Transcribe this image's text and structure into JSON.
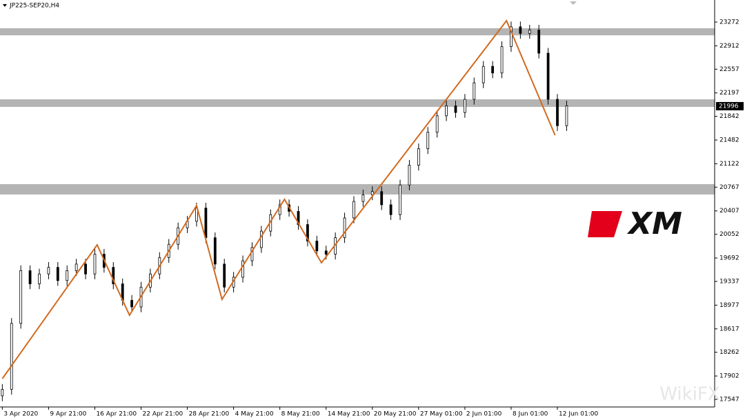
{
  "chart_data": {
    "type": "candlestick",
    "title": "JP225-SEP20,H4",
    "brand": "XM",
    "watermark": "WikiFX",
    "xlim": [
      -1,
      308
    ],
    "ylim": [
      17432,
      23607
    ],
    "yticks": [
      23272,
      22912,
      22557,
      22197,
      21842,
      21482,
      21122,
      20767,
      20407,
      20052,
      19692,
      19337,
      18977,
      18617,
      18262,
      17902,
      17547
    ],
    "xticks": [
      {
        "value": 0,
        "label": "3 Apr 2020"
      },
      {
        "value": 20,
        "label": "9 Apr 21:00"
      },
      {
        "value": 40,
        "label": "16 Apr 21:00"
      },
      {
        "value": 60,
        "label": "22 Apr 21:00"
      },
      {
        "value": 80,
        "label": "28 Apr 21:00"
      },
      {
        "value": 100,
        "label": "4 May 21:00"
      },
      {
        "value": 120,
        "label": "8 May 21:00"
      },
      {
        "value": 140,
        "label": "14 May 21:00"
      },
      {
        "value": 160,
        "label": "20 May 21:00"
      },
      {
        "value": 180,
        "label": "27 May 01:00"
      },
      {
        "value": 200,
        "label": "2 Jun 01:00"
      },
      {
        "value": 220,
        "label": "8 Jun 01:00"
      },
      {
        "value": 240,
        "label": "12 Jun 01:00"
      }
    ],
    "last_price": 21996,
    "zones": [
      [
        23071,
        23178
      ],
      [
        21985,
        22100
      ],
      [
        20656,
        20813
      ]
    ],
    "zone_color": "#b4b4b4",
    "candle_color": "#000000",
    "x": [
      0,
      4,
      8,
      12,
      16,
      20,
      24,
      28,
      32,
      36,
      40,
      44,
      48,
      52,
      56,
      60,
      64,
      68,
      72,
      76,
      80,
      84,
      88,
      92,
      96,
      100,
      104,
      108,
      112,
      116,
      120,
      124,
      128,
      132,
      136,
      140,
      144,
      148,
      152,
      156,
      160,
      164,
      168,
      172,
      176,
      180,
      184,
      188,
      192,
      196,
      200,
      204,
      208,
      212,
      216,
      220,
      224,
      228,
      232,
      236,
      240,
      244
    ],
    "open": [
      17600,
      17700,
      18700,
      19500,
      19300,
      19450,
      19550,
      19350,
      19500,
      19600,
      19450,
      19750,
      19550,
      19300,
      19050,
      18950,
      19250,
      19450,
      19700,
      19900,
      20150,
      20250,
      20450,
      20000,
      19600,
      19250,
      19400,
      19650,
      19850,
      20100,
      20350,
      20500,
      20400,
      20200,
      19950,
      19800,
      19750,
      20000,
      20300,
      20550,
      20650,
      20700,
      20500,
      20350,
      20800,
      21100,
      21350,
      21600,
      21850,
      22000,
      21900,
      22100,
      22350,
      22600,
      22500,
      22900,
      23200,
      23100,
      23150,
      22800,
      22100,
      21700
    ],
    "high": [
      17780,
      18780,
      19580,
      19580,
      19530,
      19630,
      19630,
      19580,
      19680,
      19680,
      19830,
      19830,
      19630,
      19380,
      19130,
      19330,
      19530,
      19780,
      19980,
      20230,
      20330,
      20530,
      20530,
      20080,
      19680,
      19480,
      19730,
      19930,
      20180,
      20430,
      20580,
      20580,
      20480,
      20280,
      20030,
      19880,
      20080,
      20380,
      20630,
      20730,
      20780,
      20780,
      20580,
      20880,
      21180,
      21430,
      21680,
      21930,
      22080,
      22080,
      22180,
      22430,
      22680,
      22680,
      22980,
      23280,
      23280,
      23230,
      23230,
      22880,
      22180,
      22080
    ],
    "low": [
      17520,
      17620,
      18620,
      19220,
      19220,
      19370,
      19270,
      19270,
      19420,
      19370,
      19370,
      19470,
      19220,
      18970,
      18870,
      18870,
      19170,
      19370,
      19620,
      19820,
      20070,
      20170,
      19920,
      19520,
      19170,
      19170,
      19320,
      19570,
      19770,
      20020,
      20270,
      20320,
      20120,
      19870,
      19720,
      19670,
      19670,
      19920,
      20220,
      20470,
      20570,
      20420,
      20270,
      20270,
      20720,
      21020,
      21270,
      21520,
      21770,
      21820,
      21820,
      22020,
      22270,
      22420,
      22420,
      22820,
      23020,
      23020,
      22720,
      22020,
      21620,
      21620
    ],
    "close": [
      17700,
      18700,
      19500,
      19300,
      19450,
      19550,
      19350,
      19500,
      19600,
      19450,
      19750,
      19550,
      19300,
      19050,
      18950,
      19250,
      19450,
      19700,
      19900,
      20150,
      20250,
      20450,
      20000,
      19600,
      19250,
      19400,
      19650,
      19850,
      20100,
      20350,
      20500,
      20400,
      20200,
      19950,
      19800,
      19750,
      20000,
      20300,
      20550,
      20650,
      20700,
      20500,
      20350,
      20800,
      21100,
      21350,
      21600,
      21850,
      22000,
      21900,
      22100,
      22350,
      22600,
      22500,
      22900,
      23200,
      23100,
      23150,
      22800,
      22100,
      21700,
      22000
    ],
    "zigzag": {
      "color": "#d2691e",
      "x": [
        0,
        41,
        55,
        84,
        95,
        122,
        138,
        218,
        239
      ],
      "values": [
        17861,
        19892,
        18824,
        20488,
        19065,
        20583,
        19620,
        23293,
        21556
      ]
    }
  }
}
